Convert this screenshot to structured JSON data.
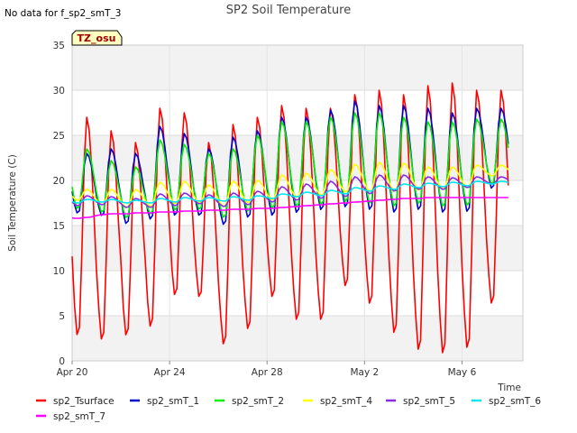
{
  "chart_data": {
    "type": "line",
    "title": "SP2 Soil Temperature",
    "no_data_note": "No data for f_sp2_smT_3",
    "site_tag": "TZ_osu",
    "xlabel": "Time",
    "ylabel": "Soil Temperature (C)",
    "ylim": [
      0,
      35
    ],
    "yticks": [
      0,
      5,
      10,
      15,
      20,
      25,
      30,
      35
    ],
    "xlim_days": [
      0,
      18.5
    ],
    "xticks": [
      {
        "day": 0,
        "label": "Apr 20"
      },
      {
        "day": 4,
        "label": "Apr 24"
      },
      {
        "day": 8,
        "label": "Apr 28"
      },
      {
        "day": 12,
        "label": "May 2"
      },
      {
        "day": 16,
        "label": "May 6"
      }
    ],
    "grid": true,
    "legend_position": "bottom",
    "sample_step_days": 0.1,
    "series": [
      {
        "name": "sp2_Tsurface",
        "color": "#ff0000",
        "daily_min": [
          2.5,
          2.0,
          2.5,
          3.5,
          7.0,
          6.8,
          1.5,
          3.2,
          6.8,
          4.2,
          4.2,
          8.0,
          6.0,
          2.7,
          0.8,
          0.4,
          1.0,
          6.0
        ],
        "daily_max": [
          27.0,
          25.5,
          24.2,
          28.0,
          27.5,
          24.2,
          26.2,
          27.0,
          28.3,
          28.0,
          28.0,
          29.5,
          30.0,
          29.5,
          30.5,
          30.8,
          30.0
        ]
      },
      {
        "name": "sp2_smT_1",
        "color": "#0000cc",
        "daily_min": [
          16.3,
          16.0,
          15.1,
          15.6,
          16.0,
          16.0,
          15.0,
          15.8,
          16.0,
          16.3,
          16.6,
          16.9,
          16.6,
          16.3,
          16.6,
          16.3,
          16.4,
          19.0
        ],
        "daily_max": [
          23.0,
          23.5,
          23.0,
          26.0,
          25.2,
          23.5,
          24.8,
          25.5,
          27.0,
          27.0,
          27.8,
          28.8,
          28.3,
          28.3,
          28.0,
          27.5,
          28.0
        ]
      },
      {
        "name": "sp2_smT_2",
        "color": "#00ee00",
        "daily_min": [
          16.8,
          16.4,
          15.8,
          16.2,
          16.6,
          16.7,
          15.8,
          16.5,
          16.8,
          17.0,
          17.2,
          17.5,
          17.3,
          17.0,
          17.3,
          17.0,
          17.1,
          19.5
        ],
        "daily_max": [
          23.5,
          22.2,
          21.5,
          24.5,
          24.0,
          23.0,
          23.5,
          25.0,
          26.5,
          26.5,
          27.0,
          27.5,
          27.5,
          27.0,
          26.5,
          26.5,
          26.8
        ]
      },
      {
        "name": "sp2_smT_4",
        "color": "#ffff00",
        "daily_min": [
          17.8,
          17.3,
          17.0,
          17.1,
          17.4,
          17.5,
          17.1,
          17.5,
          17.8,
          18.1,
          18.3,
          18.7,
          18.7,
          18.8,
          18.9,
          19.0,
          19.2,
          20.5
        ],
        "daily_max": [
          19.0,
          19.0,
          19.0,
          19.8,
          19.9,
          19.5,
          19.9,
          20.0,
          20.6,
          20.8,
          21.2,
          21.8,
          22.0,
          21.9,
          21.5,
          21.5,
          21.7
        ]
      },
      {
        "name": "sp2_smT_5",
        "color": "#8a2be2",
        "daily_min": [
          17.2,
          17.3,
          17.0,
          17.0,
          17.2,
          17.4,
          17.1,
          17.3,
          17.6,
          17.8,
          18.0,
          18.2,
          18.5,
          18.8,
          19.0,
          19.0,
          19.2,
          19.6
        ],
        "daily_max": [
          18.3,
          18.2,
          18.0,
          18.5,
          18.6,
          18.4,
          18.6,
          18.8,
          19.3,
          19.6,
          19.9,
          20.4,
          20.6,
          20.6,
          20.4,
          20.3,
          20.4
        ]
      },
      {
        "name": "sp2_smT_6",
        "color": "#00e5ee",
        "daily_min": [
          17.5,
          17.6,
          17.5,
          17.5,
          17.6,
          17.7,
          17.7,
          17.8,
          18.0,
          18.2,
          18.3,
          18.5,
          18.8,
          19.0,
          19.2,
          19.3,
          19.4,
          19.6
        ],
        "daily_max": [
          17.9,
          17.9,
          17.8,
          18.0,
          18.1,
          18.1,
          18.2,
          18.3,
          18.5,
          18.7,
          18.9,
          19.2,
          19.4,
          19.6,
          19.7,
          19.8,
          19.9
        ]
      },
      {
        "name": "sp2_smT_7",
        "color": "#ff00ff",
        "daily_min": [
          15.8,
          16.2,
          16.3,
          16.4,
          16.5,
          16.6,
          16.7,
          16.8,
          16.9,
          17.1,
          17.3,
          17.5,
          17.7,
          17.9,
          18.0,
          18.1,
          18.1,
          18.1
        ],
        "daily_max": [
          15.9,
          16.3,
          16.4,
          16.5,
          16.6,
          16.7,
          16.8,
          16.9,
          17.0,
          17.2,
          17.4,
          17.6,
          17.8,
          18.0,
          18.1,
          18.1,
          18.1
        ]
      }
    ]
  }
}
